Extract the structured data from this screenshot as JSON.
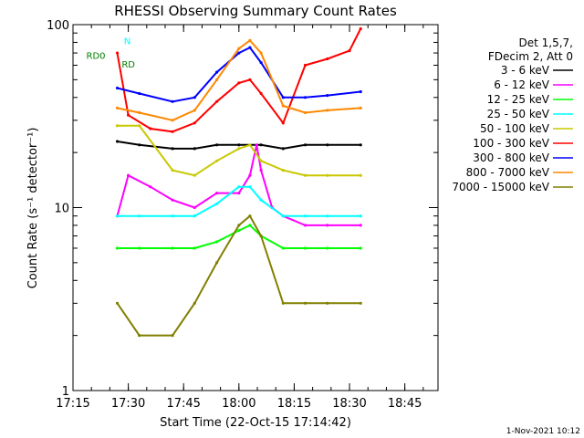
{
  "chart_data": {
    "type": "line",
    "title": "RHESSI Observing Summary Count Rates",
    "xlabel": "Start Time (22-Oct-15 17:14:42)",
    "ylabel": "Count Rate (s⁻¹ detector⁻¹)",
    "yscale": "log",
    "ylim": [
      1,
      100
    ],
    "xlim": [
      17.25,
      18.9
    ],
    "x_tick_labels": [
      "17:15",
      "17:30",
      "17:45",
      "18:00",
      "18:15",
      "18:30",
      "18:45"
    ],
    "x_ticks": [
      17.25,
      17.5,
      17.75,
      18.0,
      18.25,
      18.5,
      18.75
    ],
    "y_tick_labels": [
      "1",
      "10",
      "100"
    ],
    "y_ticks": [
      1,
      10,
      100
    ],
    "timestamp": "1-Nov-2021 10:12",
    "legend": {
      "placement": "right",
      "header": [
        "Det 1,5,7,",
        "FDecim 2, Att 0"
      ]
    },
    "series": [
      {
        "name": "3 - 6 keV",
        "color": "#000000",
        "points": [
          [
            17.45,
            23
          ],
          [
            17.55,
            22
          ],
          [
            17.7,
            21
          ],
          [
            17.8,
            21
          ],
          [
            17.9,
            22
          ],
          [
            18.0,
            22
          ],
          [
            18.1,
            22
          ],
          [
            18.2,
            21
          ],
          [
            18.3,
            22
          ],
          [
            18.4,
            22
          ],
          [
            18.55,
            22
          ]
        ]
      },
      {
        "name": "6 - 12 keV",
        "color": "#ff00ff",
        "points": [
          [
            17.45,
            9
          ],
          [
            17.5,
            15
          ],
          [
            17.6,
            13
          ],
          [
            17.7,
            11
          ],
          [
            17.8,
            10
          ],
          [
            17.9,
            12
          ],
          [
            18.0,
            12
          ],
          [
            18.05,
            15
          ],
          [
            18.08,
            22
          ],
          [
            18.1,
            16
          ],
          [
            18.15,
            10
          ],
          [
            18.2,
            9
          ],
          [
            18.3,
            8
          ],
          [
            18.4,
            8
          ],
          [
            18.55,
            8
          ]
        ]
      },
      {
        "name": "12 - 25 keV",
        "color": "#00ff00",
        "points": [
          [
            17.45,
            6
          ],
          [
            17.55,
            6
          ],
          [
            17.7,
            6
          ],
          [
            17.8,
            6
          ],
          [
            17.9,
            6.5
          ],
          [
            18.0,
            7.5
          ],
          [
            18.05,
            8
          ],
          [
            18.1,
            7
          ],
          [
            18.2,
            6
          ],
          [
            18.3,
            6
          ],
          [
            18.4,
            6
          ],
          [
            18.55,
            6
          ]
        ]
      },
      {
        "name": "25 - 50 keV",
        "color": "#00ffff",
        "points": [
          [
            17.45,
            9
          ],
          [
            17.55,
            9
          ],
          [
            17.7,
            9
          ],
          [
            17.8,
            9
          ],
          [
            17.9,
            10.5
          ],
          [
            18.0,
            13
          ],
          [
            18.05,
            13
          ],
          [
            18.1,
            11
          ],
          [
            18.2,
            9
          ],
          [
            18.3,
            9
          ],
          [
            18.4,
            9
          ],
          [
            18.55,
            9
          ]
        ]
      },
      {
        "name": "50 - 100 keV",
        "color": "#c8c800",
        "points": [
          [
            17.45,
            28
          ],
          [
            17.55,
            28
          ],
          [
            17.7,
            16
          ],
          [
            17.8,
            15
          ],
          [
            17.9,
            18
          ],
          [
            18.0,
            21
          ],
          [
            18.05,
            22
          ],
          [
            18.1,
            18
          ],
          [
            18.2,
            16
          ],
          [
            18.3,
            15
          ],
          [
            18.4,
            15
          ],
          [
            18.55,
            15
          ]
        ]
      },
      {
        "name": "100 - 300 keV",
        "color": "#ff0000",
        "points": [
          [
            17.45,
            70
          ],
          [
            17.5,
            32
          ],
          [
            17.6,
            27
          ],
          [
            17.7,
            26
          ],
          [
            17.8,
            29
          ],
          [
            17.9,
            38
          ],
          [
            18.0,
            48
          ],
          [
            18.05,
            50
          ],
          [
            18.1,
            42
          ],
          [
            18.2,
            29
          ],
          [
            18.3,
            60
          ],
          [
            18.4,
            65
          ],
          [
            18.5,
            72
          ],
          [
            18.55,
            95
          ]
        ]
      },
      {
        "name": "300 - 800 keV",
        "color": "#0000ff",
        "points": [
          [
            17.45,
            45
          ],
          [
            17.55,
            42
          ],
          [
            17.7,
            38
          ],
          [
            17.8,
            40
          ],
          [
            17.9,
            55
          ],
          [
            18.0,
            70
          ],
          [
            18.05,
            75
          ],
          [
            18.1,
            62
          ],
          [
            18.2,
            40
          ],
          [
            18.3,
            40
          ],
          [
            18.4,
            41
          ],
          [
            18.55,
            43
          ]
        ]
      },
      {
        "name": "800 - 7000 keV",
        "color": "#ff8800",
        "points": [
          [
            17.45,
            35
          ],
          [
            17.55,
            33
          ],
          [
            17.7,
            30
          ],
          [
            17.8,
            34
          ],
          [
            17.9,
            50
          ],
          [
            18.0,
            74
          ],
          [
            18.05,
            82
          ],
          [
            18.1,
            70
          ],
          [
            18.2,
            36
          ],
          [
            18.3,
            33
          ],
          [
            18.4,
            34
          ],
          [
            18.55,
            35
          ]
        ]
      },
      {
        "name": "7000 - 15000 keV",
        "color": "#808000",
        "points": [
          [
            17.45,
            3
          ],
          [
            17.55,
            2
          ],
          [
            17.7,
            2
          ],
          [
            17.8,
            3
          ],
          [
            17.9,
            5
          ],
          [
            18.0,
            8
          ],
          [
            18.05,
            9
          ],
          [
            18.1,
            7
          ],
          [
            18.2,
            3
          ],
          [
            18.3,
            3
          ],
          [
            18.4,
            3
          ],
          [
            18.55,
            3
          ]
        ]
      }
    ],
    "annotations": [
      {
        "text": "N",
        "color": "#00ffff",
        "x": 17.48,
        "y": 82
      },
      {
        "text": "RD0",
        "color": "#008000",
        "x": 17.31,
        "y": 68
      },
      {
        "text": "RD",
        "color": "#008000",
        "x": 17.47,
        "y": 61
      }
    ]
  }
}
